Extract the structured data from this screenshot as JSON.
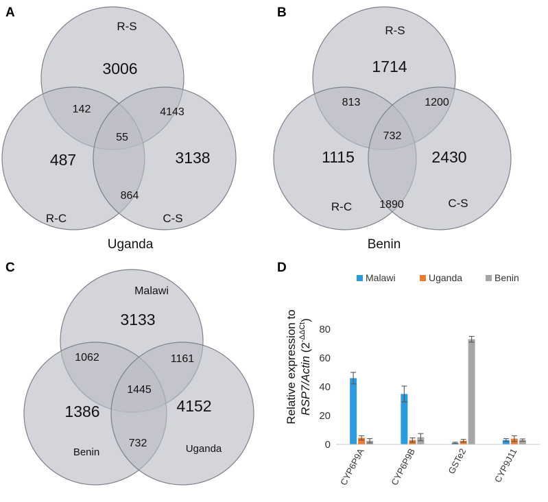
{
  "panels": {
    "A": {
      "letter": "A",
      "title": "Uganda",
      "labels": {
        "top": "R-S",
        "left": "R-C",
        "right": "C-S"
      },
      "counts": {
        "top": "3006",
        "left": "487",
        "right": "3138",
        "top_left": "142",
        "top_right": "4143",
        "bottom": "864",
        "center": "55"
      }
    },
    "B": {
      "letter": "B",
      "title": "Benin",
      "labels": {
        "top": "R-S",
        "left": "R-C",
        "right": "C-S"
      },
      "counts": {
        "top": "1714",
        "left": "1115",
        "right": "2430",
        "top_left": "813",
        "top_right": "1200",
        "bottom": "1890",
        "center": "732"
      }
    },
    "C": {
      "letter": "C",
      "title": "",
      "labels": {
        "top": "Malawi",
        "left": "Benin",
        "right": "Uganda"
      },
      "counts": {
        "top": "3133",
        "left": "1386",
        "right": "4152",
        "top_left": "1062",
        "top_right": "1161",
        "bottom": "732",
        "center": "1445"
      }
    },
    "D": {
      "letter": "D"
    }
  },
  "chart_data": {
    "type": "bar",
    "categories": [
      "CYP6P9A",
      "CYP6P9B",
      "GSTe2",
      "CYP9J11"
    ],
    "series": [
      {
        "name": "Malawi",
        "color": "#2b9be0",
        "values": [
          46,
          35,
          1,
          3
        ],
        "errors": [
          4,
          5.5,
          0.5,
          1
        ]
      },
      {
        "name": "Uganda",
        "color": "#f07a2c",
        "values": [
          4.5,
          3,
          2.5,
          4
        ],
        "errors": [
          1.5,
          1.5,
          1,
          2
        ]
      },
      {
        "name": "Benin",
        "color": "#a6a6a6",
        "values": [
          2.5,
          5,
          73,
          3
        ],
        "errors": [
          1.5,
          2.5,
          2,
          0.8
        ]
      }
    ],
    "ylim": [
      0,
      80
    ],
    "yticks": [
      "0",
      "20",
      "40",
      "60",
      "80"
    ],
    "ylabel": {
      "line1": "Relative expression to",
      "line2_italic": "RSP7/Actin",
      "line2_open": " (2",
      "line2_sup": "-ΔΔCt",
      "line2_close": ")"
    },
    "legend_position": "top",
    "grid": false
  }
}
